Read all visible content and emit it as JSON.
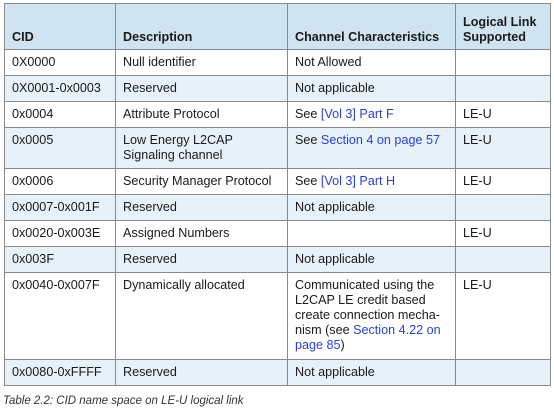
{
  "table": {
    "headers": {
      "cid": "CID",
      "description": "Description",
      "channel": "Channel Characteristics",
      "logical_link": "Logical Link Supported"
    },
    "rows": [
      {
        "cid": "0X0000",
        "description": "Null identifier",
        "channel_text": "Not Allowed",
        "channel_link": "",
        "channel_after": "",
        "logical_link": ""
      },
      {
        "cid": "0X0001-0x0003",
        "description": "Reserved",
        "channel_text": "Not applicable",
        "channel_link": "",
        "channel_after": "",
        "logical_link": ""
      },
      {
        "cid": "0x0004",
        "description": "Attribute Protocol",
        "channel_text": "See ",
        "channel_link": "[Vol 3] Part F",
        "channel_after": "",
        "logical_link": "LE-U"
      },
      {
        "cid": "0x0005",
        "description": "Low Energy L2CAP Signaling channel",
        "channel_text": "See ",
        "channel_link": "Section 4 on page 57",
        "channel_after": "",
        "logical_link": "LE-U"
      },
      {
        "cid": "0x0006",
        "description": "Security Manager Protocol",
        "channel_text": "See ",
        "channel_link": "[Vol 3] Part H",
        "channel_after": "",
        "logical_link": "LE-U"
      },
      {
        "cid": "0x0007-0x001F",
        "description": "Reserved",
        "channel_text": "Not applicable",
        "channel_link": "",
        "channel_after": "",
        "logical_link": ""
      },
      {
        "cid": "0x0020-0x003E",
        "description": "Assigned Numbers",
        "channel_text": "",
        "channel_link": "",
        "channel_after": "",
        "logical_link": "LE-U"
      },
      {
        "cid": "0x003F",
        "description": "Reserved",
        "channel_text": "Not applicable",
        "channel_link": "",
        "channel_after": "",
        "logical_link": ""
      },
      {
        "cid": "0x0040-0x007F",
        "description": "Dynamically allocated",
        "channel_text": "Communicated using the L2CAP LE credit based create connection mecha­nism (see ",
        "channel_link": "Section 4.22 on page 85",
        "channel_after": ")",
        "logical_link": "LE-U"
      },
      {
        "cid": "0x0080-0xFFFF",
        "description": "Reserved",
        "channel_text": "Not applicable",
        "channel_link": "",
        "channel_after": "",
        "logical_link": ""
      }
    ]
  },
  "caption": "Table 2.2:  CID name space on LE-U logical link",
  "colors": {
    "header_bg": "#cfe3f1",
    "shaded_row_bg": "#e6f1f9",
    "link": "#2a41d6",
    "border": "#8a8a8a"
  }
}
